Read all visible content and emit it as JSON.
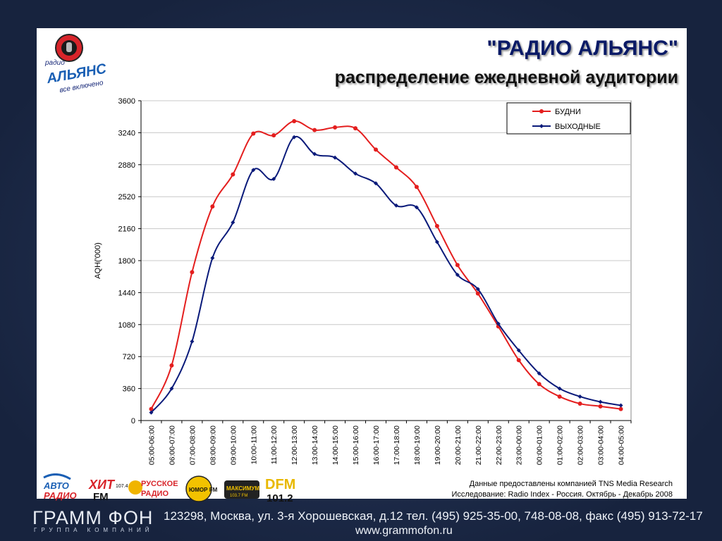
{
  "header": {
    "title": "\"РАДИО АЛЬЯНС\"",
    "subtitle": "распределение ежедневной аудитории"
  },
  "logo": {
    "top_text": "радио",
    "name": "АЛЬЯНС",
    "slogan": "все включено"
  },
  "chart_data": {
    "type": "line",
    "ylabel": "AQH('000)",
    "xlabel": "",
    "ylim": [
      0,
      3600
    ],
    "yticks": [
      0,
      360,
      720,
      1080,
      1440,
      1800,
      2160,
      2520,
      2880,
      3240,
      3600
    ],
    "grid": "horizontal",
    "legend_position": "top-right",
    "categories": [
      "05:00-06:00",
      "06:00-07:00",
      "07:00-08:00",
      "08:00-09:00",
      "09:00-10:00",
      "10:00-11:00",
      "11:00-12:00",
      "12:00-13:00",
      "13:00-14:00",
      "14:00-15:00",
      "15:00-16:00",
      "16:00-17:00",
      "17:00-18:00",
      "18:00-19:00",
      "19:00-20:00",
      "20:00-21:00",
      "21:00-22:00",
      "22:00-23:00",
      "23:00-00:00",
      "00:00-01:00",
      "01:00-02:00",
      "02:00-03:00",
      "03:00-04:00",
      "04:00-05:00"
    ],
    "series": [
      {
        "name": "БУДНИ",
        "color": "#e41e1e",
        "values": [
          130,
          620,
          1670,
          2410,
          2770,
          3230,
          3210,
          3370,
          3270,
          3300,
          3290,
          3050,
          2850,
          2630,
          2190,
          1750,
          1430,
          1060,
          680,
          410,
          270,
          190,
          160,
          130
        ]
      },
      {
        "name": "ВЫХОДНЫЕ",
        "color": "#0a1a7a",
        "values": [
          90,
          360,
          890,
          1830,
          2230,
          2820,
          2720,
          3190,
          3000,
          2960,
          2780,
          2670,
          2420,
          2400,
          2010,
          1640,
          1480,
          1090,
          790,
          530,
          360,
          270,
          210,
          170
        ]
      }
    ]
  },
  "source": {
    "line1": "Данные предоставлены компанией TNS Media Research",
    "line2": "Исследование: Radio Index - Россия. Октябрь - Декабрь 2008"
  },
  "station_logos": {
    "avtoradio_1": "АВТО",
    "avtoradio_2": "РАДИО",
    "hit_1": "ХИТ",
    "hit_freq": "107.4",
    "hit_2": "FM",
    "russkoe_1": "РУССКОЕ",
    "russkoe_2": "РАДИО",
    "humor": "ЮМОР FM",
    "maximum": "МАКСИМУМ",
    "maximum_freq": "103.7 FM",
    "dfm_1": "DFM",
    "dfm_2": "101.2"
  },
  "footer": {
    "brand": "ГРАММ ФОН",
    "group": "ГРУППА КОМПАНИЙ",
    "address": "123298, Москва, ул. 3-я Хорошевская, д.12 тел. (495) 925-35-00, 748-08-08, факс (495) 913-72-17",
    "web": "www.grammofon.ru"
  },
  "colors": {
    "panel": "#ffffff",
    "frame": "#1c2a4a",
    "title": "#0a1a66"
  }
}
